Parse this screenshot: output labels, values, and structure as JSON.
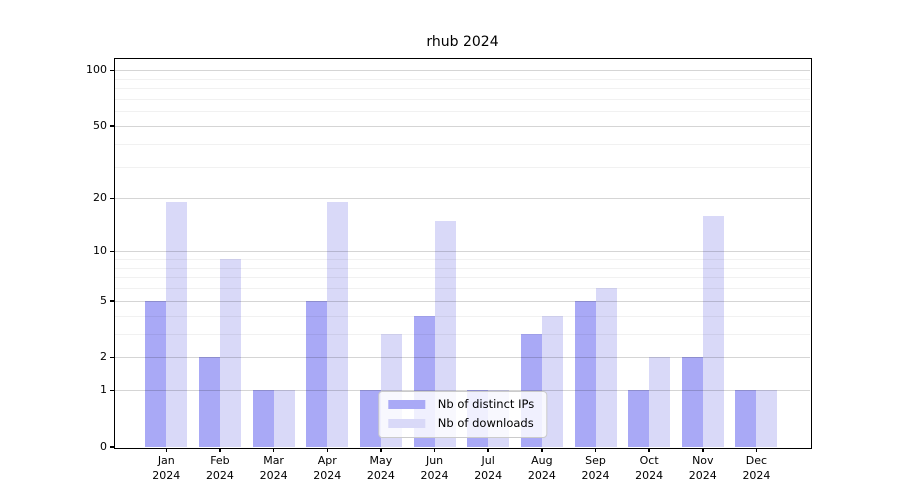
{
  "chart_data": {
    "type": "bar",
    "title": "rhub 2024",
    "x_categories": [
      "Jan",
      "Feb",
      "Mar",
      "Apr",
      "May",
      "Jun",
      "Jul",
      "Aug",
      "Sep",
      "Oct",
      "Nov",
      "Dec"
    ],
    "x_year_suffix": "2024",
    "series": [
      {
        "name": "Nb of distinct IPs",
        "color": "#a9a9f6",
        "values": [
          5,
          2,
          1,
          5,
          1,
          4,
          1,
          3,
          5,
          1,
          2,
          1
        ]
      },
      {
        "name": "Nb of downloads",
        "color": "#d9d9f8",
        "values": [
          19,
          9,
          1,
          19,
          3,
          15,
          1,
          4,
          6,
          2,
          16,
          1
        ]
      }
    ],
    "y_scale": "log1p",
    "y_ticks": [
      0,
      1,
      2,
      5,
      10,
      20,
      50,
      100
    ],
    "y_minor_gridlines": [
      3,
      4,
      6,
      7,
      8,
      9,
      30,
      40,
      60,
      70,
      80,
      90
    ],
    "ylim": [
      0,
      115
    ],
    "grid": "horizontal",
    "legend_position": "lower center",
    "background_color": "#ffffff",
    "axis_color": "#000000"
  }
}
